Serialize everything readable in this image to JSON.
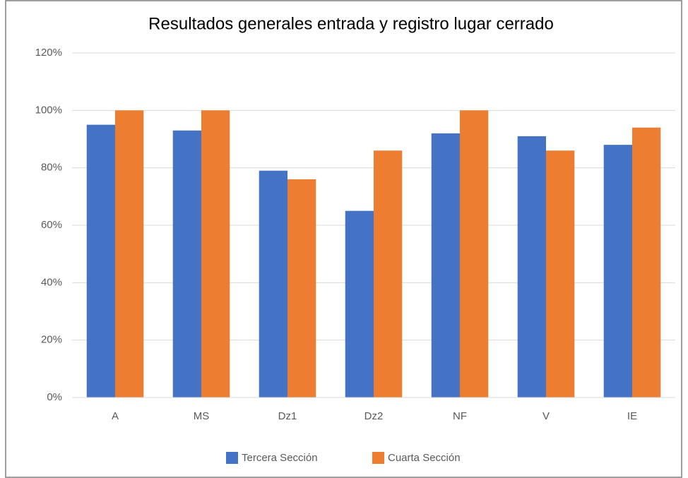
{
  "chart_data": {
    "type": "bar",
    "title": "Resultados generales entrada y registro lugar cerrado",
    "categories": [
      "A",
      "MS",
      "Dz1",
      "Dz2",
      "NF",
      "V",
      "IE"
    ],
    "series": [
      {
        "name": "Tercera Sección",
        "color": "#4472c4",
        "values": [
          95,
          93,
          79,
          65,
          92,
          91,
          88
        ]
      },
      {
        "name": "Cuarta Sección",
        "color": "#ed7d31",
        "values": [
          100,
          100,
          76,
          86,
          100,
          86,
          94
        ]
      }
    ],
    "ylim": [
      0,
      120
    ],
    "yticks": [
      {
        "value": 0,
        "label": "0%"
      },
      {
        "value": 20,
        "label": "20%"
      },
      {
        "value": 40,
        "label": "40%"
      },
      {
        "value": 60,
        "label": "60%"
      },
      {
        "value": 80,
        "label": "80%"
      },
      {
        "value": 100,
        "label": "100%"
      },
      {
        "value": 120,
        "label": "120%"
      }
    ],
    "grid": true,
    "legend": "bottom"
  }
}
